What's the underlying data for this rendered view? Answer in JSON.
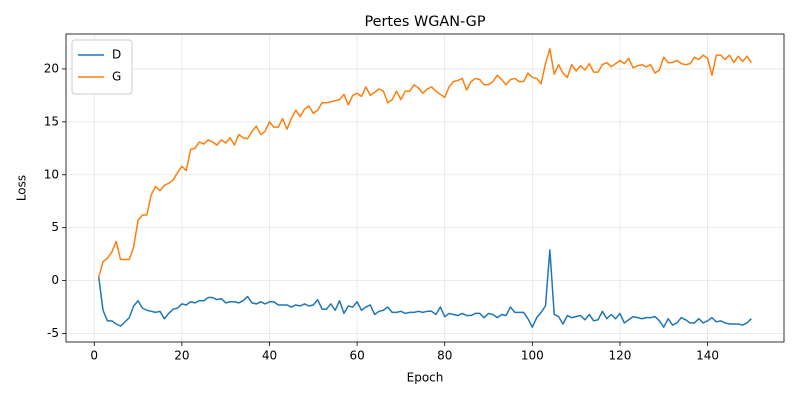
{
  "chart_data": {
    "type": "line",
    "title": "Pertes WGAN-GP",
    "xlabel": "Epoch",
    "ylabel": "Loss",
    "x": [
      1,
      2,
      3,
      4,
      5,
      6,
      7,
      8,
      9,
      10,
      11,
      12,
      13,
      14,
      15,
      16,
      17,
      18,
      19,
      20,
      21,
      22,
      23,
      24,
      25,
      26,
      27,
      28,
      29,
      30,
      31,
      32,
      33,
      34,
      35,
      36,
      37,
      38,
      39,
      40,
      41,
      42,
      43,
      44,
      45,
      46,
      47,
      48,
      49,
      50,
      51,
      52,
      53,
      54,
      55,
      56,
      57,
      58,
      59,
      60,
      61,
      62,
      63,
      64,
      65,
      66,
      67,
      68,
      69,
      70,
      71,
      72,
      73,
      74,
      75,
      76,
      77,
      78,
      79,
      80,
      81,
      82,
      83,
      84,
      85,
      86,
      87,
      88,
      89,
      90,
      91,
      92,
      93,
      94,
      95,
      96,
      97,
      98,
      99,
      100,
      101,
      102,
      103,
      104,
      105,
      106,
      107,
      108,
      109,
      110,
      111,
      112,
      113,
      114,
      115,
      116,
      117,
      118,
      119,
      120,
      121,
      122,
      123,
      124,
      125,
      126,
      127,
      128,
      129,
      130,
      131,
      132,
      133,
      134,
      135,
      136,
      137,
      138,
      139,
      140,
      141,
      142,
      143,
      144,
      145,
      146,
      147,
      148,
      149,
      150
    ],
    "series": [
      {
        "name": "D",
        "color": "#1f77b4",
        "values": [
          0.4,
          -2.8,
          -3.8,
          -3.8,
          -4.1,
          -4.3,
          -3.9,
          -3.5,
          -2.4,
          -1.9,
          -2.6,
          -2.8,
          -2.9,
          -3.0,
          -2.9,
          -3.6,
          -3.1,
          -2.7,
          -2.6,
          -2.2,
          -2.3,
          -2.0,
          -2.1,
          -1.9,
          -1.9,
          -1.6,
          -1.6,
          -1.8,
          -1.7,
          -2.1,
          -2.0,
          -2.0,
          -2.1,
          -1.9,
          -1.5,
          -2.1,
          -2.2,
          -2.0,
          -2.2,
          -2.0,
          -2.0,
          -2.3,
          -2.3,
          -2.3,
          -2.5,
          -2.3,
          -2.4,
          -2.2,
          -2.4,
          -2.3,
          -1.8,
          -2.7,
          -2.7,
          -2.2,
          -2.8,
          -1.9,
          -3.1,
          -2.4,
          -2.5,
          -2.0,
          -2.8,
          -2.5,
          -2.3,
          -3.2,
          -2.9,
          -2.8,
          -2.5,
          -3.0,
          -3.0,
          -2.9,
          -3.1,
          -3.0,
          -3.0,
          -2.9,
          -3.0,
          -2.9,
          -2.9,
          -3.2,
          -2.5,
          -3.4,
          -3.1,
          -3.2,
          -3.3,
          -3.1,
          -3.3,
          -3.3,
          -3.1,
          -3.1,
          -3.5,
          -3.1,
          -3.2,
          -3.5,
          -3.2,
          -3.3,
          -2.5,
          -3.0,
          -3.0,
          -3.0,
          -3.6,
          -4.4,
          -3.5,
          -3.0,
          -2.4,
          2.9,
          -3.2,
          -3.4,
          -4.1,
          -3.3,
          -3.5,
          -3.4,
          -3.3,
          -3.7,
          -3.2,
          -3.8,
          -3.7,
          -2.9,
          -3.6,
          -3.2,
          -3.6,
          -3.1,
          -4.0,
          -3.7,
          -3.4,
          -3.5,
          -3.6,
          -3.5,
          -3.5,
          -3.4,
          -3.8,
          -4.4,
          -3.6,
          -4.2,
          -4.0,
          -3.5,
          -3.7,
          -4.0,
          -4.0,
          -3.6,
          -4.0,
          -3.8,
          -3.5,
          -3.9,
          -3.8,
          -4.0,
          -4.1,
          -4.1,
          -4.1,
          -4.2,
          -4.0,
          -3.6
        ]
      },
      {
        "name": "G",
        "color": "#ff7f0e",
        "values": [
          0.3,
          1.8,
          2.1,
          2.7,
          3.7,
          2.0,
          2.0,
          2.0,
          3.2,
          5.7,
          6.2,
          6.2,
          8.1,
          8.9,
          8.5,
          9.0,
          9.2,
          9.5,
          10.2,
          10.8,
          10.4,
          12.4,
          12.5,
          13.1,
          12.9,
          13.3,
          13.1,
          12.8,
          13.3,
          13.0,
          13.5,
          12.8,
          13.8,
          13.5,
          13.4,
          14.1,
          14.6,
          13.8,
          14.1,
          15.0,
          14.5,
          14.5,
          15.3,
          14.3,
          15.3,
          16.1,
          15.5,
          16.2,
          16.5,
          15.8,
          16.1,
          16.8,
          16.8,
          16.9,
          17.0,
          17.1,
          17.6,
          16.6,
          17.5,
          17.7,
          17.4,
          18.3,
          17.5,
          17.8,
          18.1,
          17.9,
          16.8,
          17.1,
          17.9,
          17.1,
          17.9,
          17.9,
          18.5,
          18.2,
          17.7,
          18.1,
          18.3,
          17.9,
          17.6,
          17.3,
          18.3,
          18.8,
          18.9,
          19.1,
          18.0,
          18.8,
          19.1,
          19.0,
          18.5,
          18.5,
          18.8,
          19.4,
          19.0,
          18.5,
          19.0,
          19.1,
          18.8,
          18.8,
          19.6,
          19.2,
          19.1,
          18.6,
          20.5,
          21.9,
          19.5,
          20.4,
          19.6,
          19.2,
          20.4,
          19.8,
          20.3,
          19.9,
          20.5,
          19.7,
          19.7,
          20.4,
          20.6,
          20.2,
          20.5,
          20.8,
          20.5,
          21.0,
          20.1,
          20.3,
          20.4,
          20.2,
          20.4,
          19.6,
          19.9,
          21.1,
          20.6,
          20.6,
          20.8,
          20.5,
          20.4,
          20.5,
          21.1,
          20.9,
          21.3,
          21.0,
          19.4,
          21.3,
          21.3,
          20.9,
          21.3,
          20.6,
          21.2,
          20.7,
          21.2,
          20.6
        ]
      }
    ],
    "xlim": [
      -6.45,
      157.45
    ],
    "ylim": [
      -5.8,
      23.3
    ],
    "xticks": [
      0,
      20,
      40,
      60,
      80,
      100,
      120,
      140
    ],
    "yticks": [
      -5,
      0,
      5,
      10,
      15,
      20
    ],
    "grid": true,
    "legend": "upper left"
  }
}
